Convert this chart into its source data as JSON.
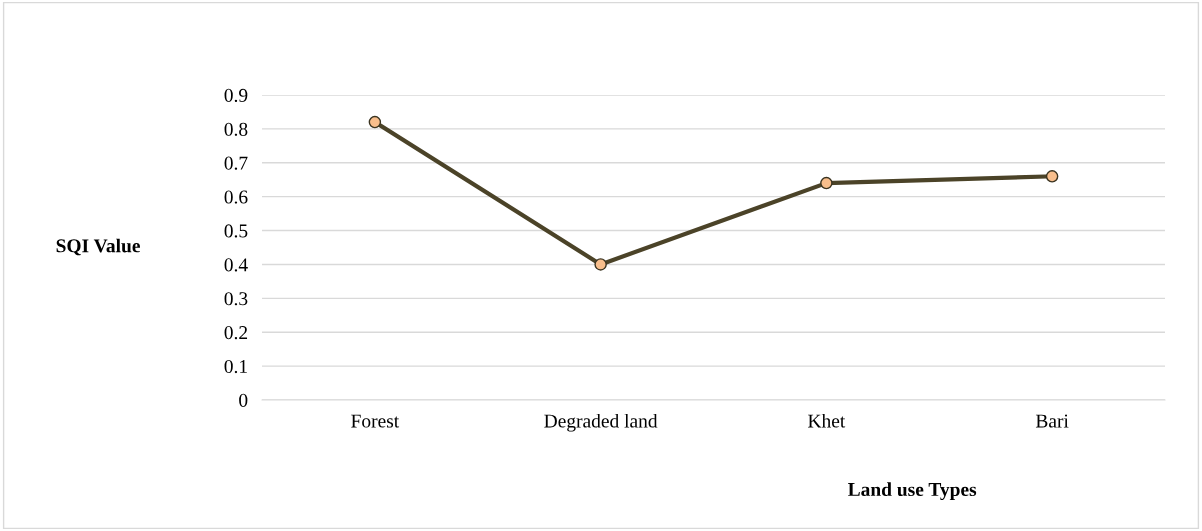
{
  "chart_data": {
    "type": "line",
    "xlabel": "Land use Types",
    "ylabel": "SQI Value",
    "categories": [
      "Forest",
      "Degraded land",
      "Khet",
      "Bari"
    ],
    "series": [
      {
        "color": "#4b4328",
        "values": [
          0.82,
          0.4,
          0.64,
          0.66
        ]
      }
    ],
    "ylim": [
      0,
      0.9
    ],
    "yticks": [
      0,
      0.1,
      0.2,
      0.3,
      0.4,
      0.5,
      0.6,
      0.7,
      0.8,
      0.9
    ],
    "grid": "y",
    "marker": "circle",
    "line_style": "solid"
  }
}
